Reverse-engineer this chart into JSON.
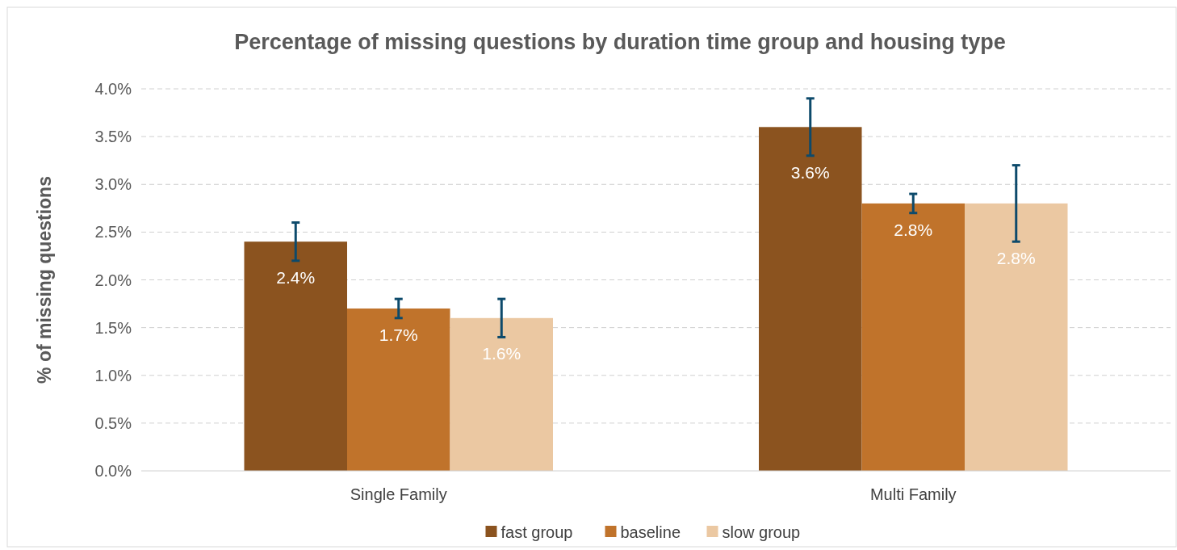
{
  "chart_data": {
    "type": "bar",
    "title": "Percentage of missing questions by duration time group and housing type",
    "ylabel": "% of missing questions",
    "categories": [
      "Single Family",
      "Multi Family"
    ],
    "series": [
      {
        "name": "fast group",
        "color": "#8b531f",
        "values": [
          2.4,
          3.6
        ],
        "errors": [
          [
            2.2,
            2.6
          ],
          [
            3.3,
            3.9
          ]
        ],
        "value_labels": [
          "2.4%",
          "3.6%"
        ]
      },
      {
        "name": "baseline",
        "color": "#c0732b",
        "values": [
          1.7,
          2.8
        ],
        "errors": [
          [
            1.6,
            1.8
          ],
          [
            2.7,
            2.9
          ]
        ],
        "value_labels": [
          "1.7%",
          "2.8%"
        ]
      },
      {
        "name": "slow group",
        "color": "#ebc8a2",
        "values": [
          1.6,
          2.8
        ],
        "errors": [
          [
            1.4,
            1.8
          ],
          [
            2.4,
            3.2
          ]
        ],
        "value_labels": [
          "1.6%",
          "2.8%"
        ]
      }
    ],
    "ylim": [
      0,
      4
    ],
    "yticks": [
      {
        "value": 0,
        "label": "0.0%"
      },
      {
        "value": 0.5,
        "label": "0.5%"
      },
      {
        "value": 1,
        "label": "1.0%"
      },
      {
        "value": 1.5,
        "label": "1.5%"
      },
      {
        "value": 2,
        "label": "2.0%"
      },
      {
        "value": 2.5,
        "label": "2.5%"
      },
      {
        "value": 3,
        "label": "3.0%"
      },
      {
        "value": 3.5,
        "label": "3.5%"
      },
      {
        "value": 4,
        "label": "4.0%"
      }
    ],
    "grid": "y",
    "legend": "bottom"
  }
}
